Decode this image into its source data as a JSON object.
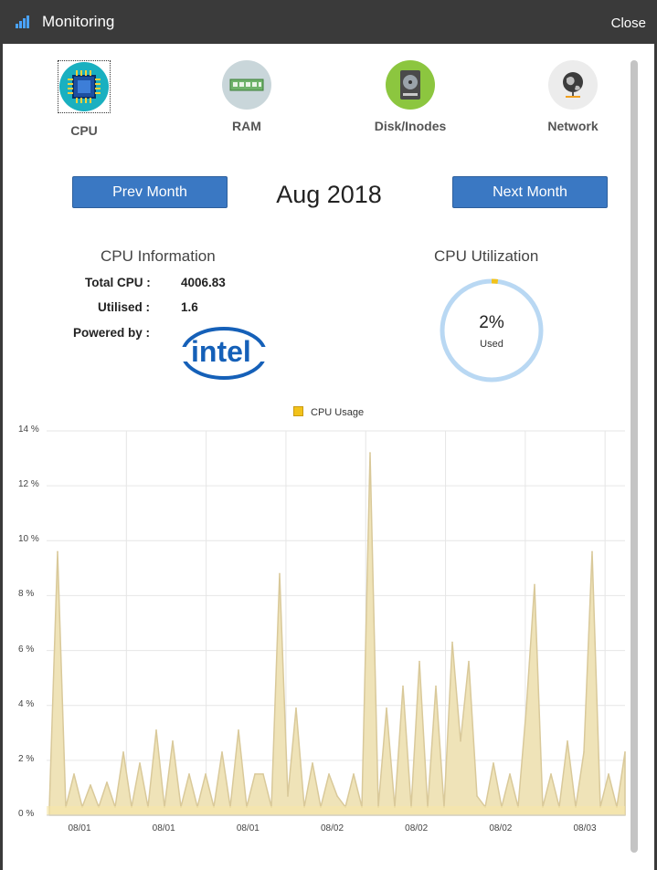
{
  "window": {
    "title": "Monitoring",
    "close_label": "Close"
  },
  "tabs": [
    {
      "label": "CPU",
      "icon": "cpu-icon",
      "active": true
    },
    {
      "label": "RAM",
      "icon": "ram-icon",
      "active": false
    },
    {
      "label": "Disk/Inodes",
      "icon": "disk-icon",
      "active": false
    },
    {
      "label": "Network",
      "icon": "network-icon",
      "active": false
    }
  ],
  "nav": {
    "prev_label": "Prev Month",
    "next_label": "Next Month",
    "current_month": "Aug 2018"
  },
  "cpu_info": {
    "title": "CPU Information",
    "total_label": "Total CPU :",
    "total_value": "4006.83",
    "utilised_label": "Utilised :",
    "utilised_value": "1.6",
    "powered_label": "Powered by :",
    "brand": "intel"
  },
  "utilization": {
    "title": "CPU Utilization",
    "percent_text": "2%",
    "used_label": "Used",
    "value_fraction": 0.02
  },
  "colors": {
    "accent": "#3a78c3",
    "series_fill": "#efe3b8",
    "series_line": "#d9c99a",
    "donut": "#b9d8f3",
    "donut_used": "#f2c21a"
  },
  "chart_data": {
    "type": "area",
    "legend": [
      "CPU Usage"
    ],
    "ylim": [
      0,
      14
    ],
    "yticks": [
      "0 %",
      "2 %",
      "4 %",
      "6 %",
      "8 %",
      "10 %",
      "12 %",
      "14 %"
    ],
    "xtick_labels": [
      "08/01",
      "08/01",
      "08/01",
      "08/02",
      "08/02",
      "08/02",
      "08/03"
    ],
    "series": [
      {
        "name": "CPU Usage",
        "x_index": [
          0,
          1,
          2,
          3,
          4,
          5,
          6,
          7,
          8,
          9,
          10,
          11,
          12,
          13,
          14,
          15,
          16,
          17,
          18,
          19,
          20,
          21,
          22,
          23,
          24,
          25,
          26,
          27,
          28,
          29,
          30,
          31,
          32,
          33,
          34,
          35,
          36,
          37,
          38,
          39,
          40,
          41,
          42,
          43,
          44,
          45,
          46,
          47,
          48,
          49,
          50,
          51,
          52,
          53,
          54,
          55,
          56,
          57,
          58,
          59,
          60,
          61,
          62,
          63,
          64,
          65,
          66,
          67,
          68,
          69,
          70
        ],
        "values": [
          0.3,
          9.6,
          0.3,
          1.5,
          0.3,
          1.1,
          0.3,
          1.2,
          0.3,
          2.3,
          0.3,
          1.9,
          0.3,
          3.1,
          0.3,
          2.7,
          0.3,
          1.5,
          0.3,
          1.5,
          0.3,
          2.3,
          0.3,
          3.1,
          0.3,
          1.5,
          1.5,
          0.3,
          8.8,
          0.7,
          3.9,
          0.3,
          1.9,
          0.3,
          1.5,
          0.7,
          0.3,
          1.5,
          0.3,
          13.2,
          0.3,
          3.9,
          0.3,
          4.7,
          0.3,
          5.6,
          0.3,
          4.7,
          0.3,
          6.3,
          2.7,
          5.6,
          0.7,
          0.3,
          1.9,
          0.3,
          1.5,
          0.3,
          3.9,
          8.4,
          0.3,
          1.5,
          0.3,
          2.7,
          0.3,
          2.3,
          9.6,
          0.3,
          1.5,
          0.3,
          2.3
        ]
      }
    ]
  }
}
